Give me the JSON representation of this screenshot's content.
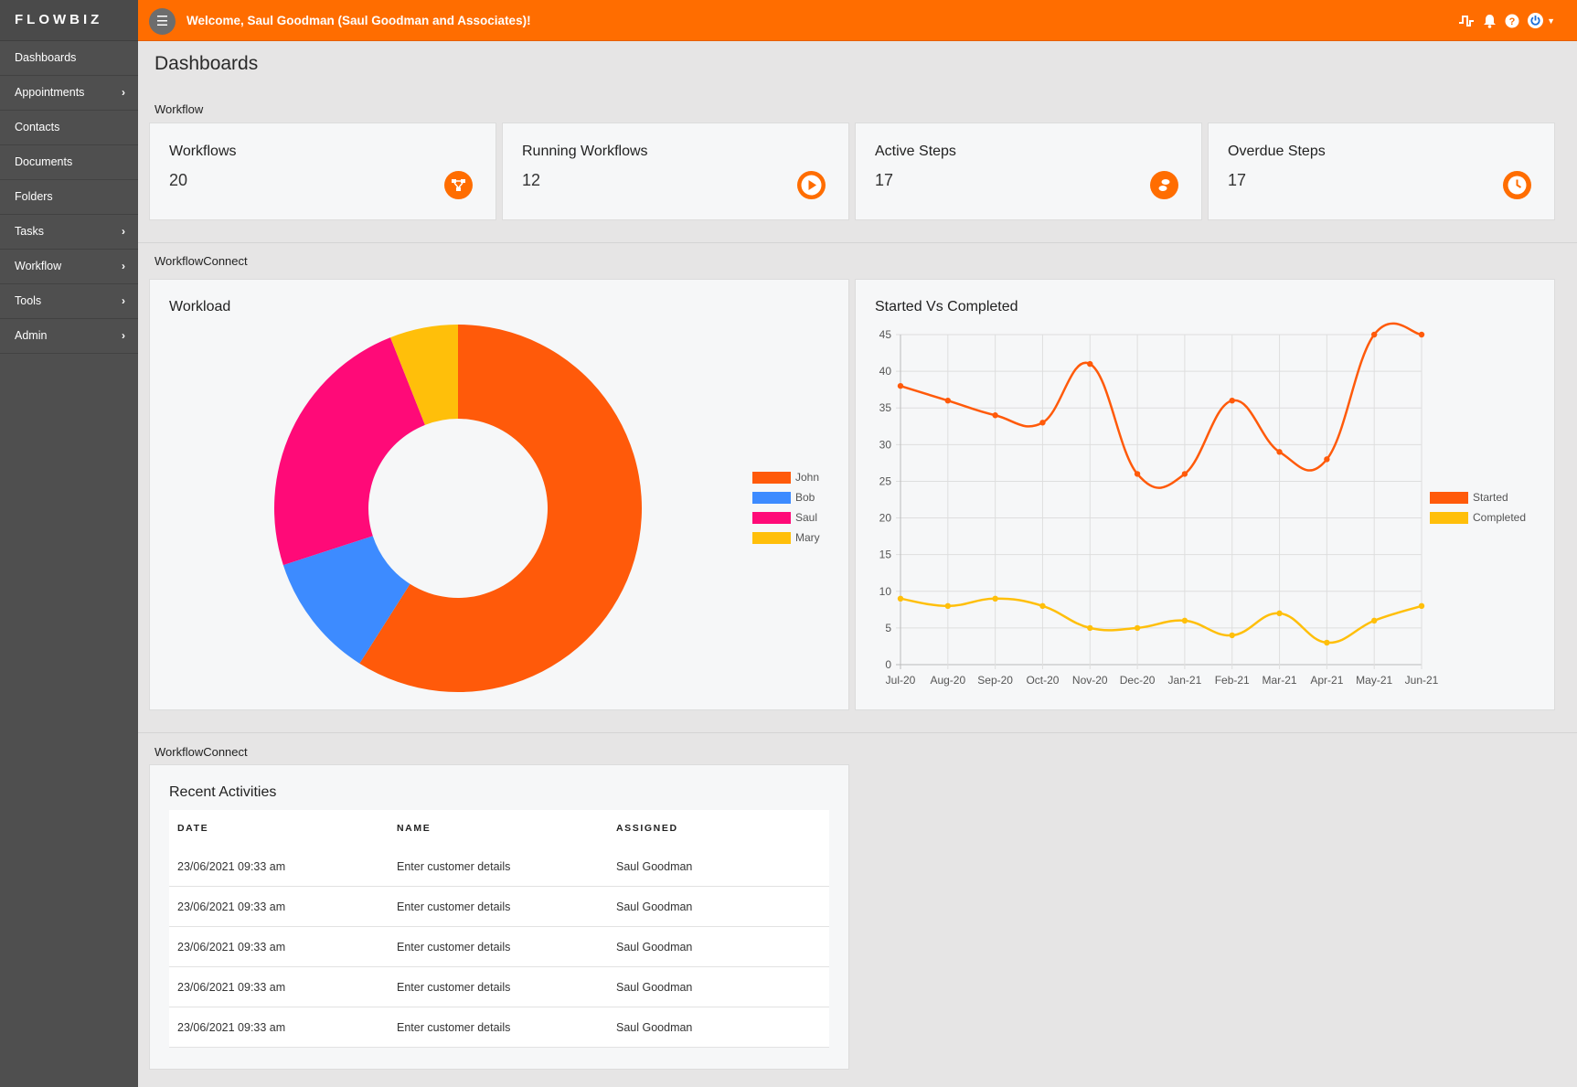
{
  "brand": "FLOWBIZ",
  "sidebar": {
    "items": [
      {
        "label": "Dashboards",
        "chevron": false
      },
      {
        "label": "Appointments",
        "chevron": true
      },
      {
        "label": "Contacts",
        "chevron": false
      },
      {
        "label": "Documents",
        "chevron": false
      },
      {
        "label": "Folders",
        "chevron": false
      },
      {
        "label": "Tasks",
        "chevron": true
      },
      {
        "label": "Workflow",
        "chevron": true
      },
      {
        "label": "Tools",
        "chevron": true
      },
      {
        "label": "Admin",
        "chevron": true
      }
    ]
  },
  "topbar": {
    "welcome": "Welcome, Saul Goodman (Saul Goodman and Associates)!",
    "icons": [
      "pulse-icon",
      "bell-icon",
      "help-icon",
      "power-icon",
      "caret-down-icon"
    ],
    "accent": "#ff6d00"
  },
  "page": {
    "title": "Dashboards"
  },
  "sections": {
    "workflow": "Workflow",
    "connect1": "WorkflowConnect",
    "connect2": "WorkflowConnect"
  },
  "stats": [
    {
      "title": "Workflows",
      "value": "20",
      "icon": "workflow-icon"
    },
    {
      "title": "Running Workflows",
      "value": "12",
      "icon": "play-icon"
    },
    {
      "title": "Active Steps",
      "value": "17",
      "icon": "steps-icon"
    },
    {
      "title": "Overdue Steps",
      "value": "17",
      "icon": "clock-icon"
    }
  ],
  "workload": {
    "title": "Workload"
  },
  "started": {
    "title": "Started Vs Completed"
  },
  "chart_data": [
    {
      "type": "pie",
      "title": "Workload",
      "categories": [
        "John",
        "Bob",
        "Saul",
        "Mary"
      ],
      "values": [
        59,
        11,
        24,
        6
      ],
      "colors": [
        "#ff5a0a",
        "#3d8bff",
        "#ff0a78",
        "#ffbf0a"
      ],
      "donut": true,
      "legend": "right"
    },
    {
      "type": "line",
      "title": "Started Vs Completed",
      "x": [
        "Jul-20",
        "Aug-20",
        "Sep-20",
        "Oct-20",
        "Nov-20",
        "Dec-20",
        "Jan-21",
        "Feb-21",
        "Mar-21",
        "Apr-21",
        "May-21",
        "Jun-21"
      ],
      "series": [
        {
          "name": "Started",
          "values": [
            38,
            36,
            34,
            33,
            41,
            26,
            26,
            36,
            29,
            28,
            45,
            45
          ],
          "color": "#ff5a0a"
        },
        {
          "name": "Completed",
          "values": [
            9,
            8,
            9,
            8,
            5,
            5,
            6,
            4,
            7,
            3,
            6,
            8
          ],
          "color": "#ffbf0a"
        }
      ],
      "ylim": [
        0,
        45
      ],
      "yticks": [
        0,
        5,
        10,
        15,
        20,
        25,
        30,
        35,
        40,
        45
      ],
      "grid": true,
      "legend": "right"
    }
  ],
  "activities": {
    "title": "Recent Activities",
    "columns": [
      "DATE",
      "NAME",
      "ASSIGNED"
    ],
    "rows": [
      [
        "23/06/2021 09:33 am",
        "Enter customer details",
        "Saul Goodman"
      ],
      [
        "23/06/2021 09:33 am",
        "Enter customer details",
        "Saul Goodman"
      ],
      [
        "23/06/2021 09:33 am",
        "Enter customer details",
        "Saul Goodman"
      ],
      [
        "23/06/2021 09:33 am",
        "Enter customer details",
        "Saul Goodman"
      ],
      [
        "23/06/2021 09:33 am",
        "Enter customer details",
        "Saul Goodman"
      ]
    ]
  }
}
